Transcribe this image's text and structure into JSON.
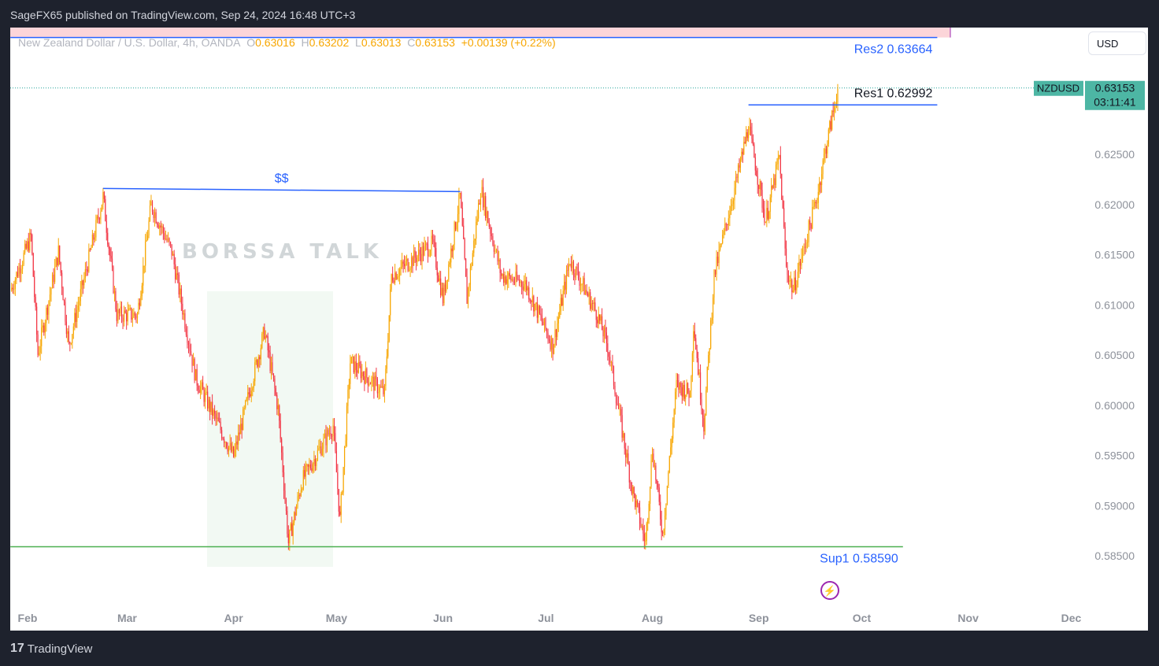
{
  "header": "SageFX65 published on TradingView.com, Sep 24, 2024 16:48 UTC+3",
  "legend": {
    "symbol": "New Zealand Dollar / U.S. Dollar, 4h, OANDA",
    "o_label": "O",
    "o": "0.63016",
    "h_label": "H",
    "h": "0.63202",
    "l_label": "L",
    "l": "0.63013",
    "c_label": "C",
    "c": "0.63153",
    "change": "+0.00139 (+0.22%)"
  },
  "currency_button": "USD",
  "price_tag": {
    "symbol": "NZDUSD",
    "price": "0.63153",
    "countdown": "03:11:41",
    "color": "#4db6a4"
  },
  "watermark": {
    "text": "BORSSA TALK"
  },
  "footer": {
    "logo": "TradingView"
  },
  "colors": {
    "up": "#f7a600",
    "down": "#f23645",
    "levels": "#2962ff",
    "support": "#4caf50",
    "zone": "#fcd5d9"
  },
  "chart_data": {
    "type": "candlestick",
    "symbol": "NZDUSD",
    "interval": "4h",
    "ylim": [
      0.5805,
      0.6383
    ],
    "y_ticks": [
      "0.62500",
      "0.62000",
      "0.61500",
      "0.61000",
      "0.60500",
      "0.60000",
      "0.59500",
      "0.59000",
      "0.58500"
    ],
    "x_ticks": [
      "Feb",
      "Mar",
      "Apr",
      "May",
      "Jun",
      "Jul",
      "Aug",
      "Sep",
      "Oct",
      "Nov",
      "Dec"
    ],
    "price_path": [
      [
        "2024-01-27",
        0.6114
      ],
      [
        "2024-02-02",
        0.6168
      ],
      [
        "2024-02-04",
        0.6051
      ],
      [
        "2024-02-10",
        0.6153
      ],
      [
        "2024-02-13",
        0.6059
      ],
      [
        "2024-02-23",
        0.6208
      ],
      [
        "2024-02-27",
        0.609
      ],
      [
        "2024-03-04",
        0.609
      ],
      [
        "2024-03-08",
        0.62
      ],
      [
        "2024-03-14",
        0.6153
      ],
      [
        "2024-03-21",
        0.6027
      ],
      [
        "2024-04-01",
        0.5949
      ],
      [
        "2024-04-10",
        0.6074
      ],
      [
        "2024-04-14",
        0.5996
      ],
      [
        "2024-04-17",
        0.5863
      ],
      [
        "2024-04-21",
        0.5925
      ],
      [
        "2024-04-30",
        0.598
      ],
      [
        "2024-05-02",
        0.5886
      ],
      [
        "2024-05-05",
        0.6043
      ],
      [
        "2024-05-15",
        0.6012
      ],
      [
        "2024-05-17",
        0.6129
      ],
      [
        "2024-05-29",
        0.6161
      ],
      [
        "2024-06-01",
        0.6106
      ],
      [
        "2024-06-06",
        0.6208
      ],
      [
        "2024-06-08",
        0.6106
      ],
      [
        "2024-06-12",
        0.6216
      ],
      [
        "2024-06-18",
        0.6129
      ],
      [
        "2024-06-25",
        0.6121
      ],
      [
        "2024-07-03",
        0.6059
      ],
      [
        "2024-07-08",
        0.6145
      ],
      [
        "2024-07-16",
        0.609
      ],
      [
        "2024-07-19",
        0.6059
      ],
      [
        "2024-07-26",
        0.5918
      ],
      [
        "2024-07-30",
        0.5863
      ],
      [
        "2024-08-01",
        0.5957
      ],
      [
        "2024-08-04",
        0.5871
      ],
      [
        "2024-08-08",
        0.602
      ],
      [
        "2024-08-12",
        0.6012
      ],
      [
        "2024-08-13",
        0.6082
      ],
      [
        "2024-08-16",
        0.598
      ],
      [
        "2024-08-19",
        0.6129
      ],
      [
        "2024-08-26",
        0.6231
      ],
      [
        "2024-08-29",
        0.6278
      ],
      [
        "2024-09-03",
        0.6184
      ],
      [
        "2024-09-07",
        0.6247
      ],
      [
        "2024-09-09",
        0.6137
      ],
      [
        "2024-09-11",
        0.6114
      ],
      [
        "2024-09-18",
        0.6208
      ],
      [
        "2024-09-20",
        0.6247
      ],
      [
        "2024-09-24",
        0.63153
      ]
    ],
    "levels": [
      {
        "label": "Res2 0.63664",
        "value": 0.63664,
        "from": "2024-01-27",
        "to": "2024-10-23"
      },
      {
        "label": "Res1 0.62992",
        "value": 0.62992,
        "from": "2024-08-29",
        "to": "2024-10-23"
      },
      {
        "label": "Sup1 0.58590",
        "value": 0.5859,
        "from": "2024-01-27",
        "to": "2024-10-13"
      },
      {
        "label": "$$",
        "value": 0.6216,
        "from": "2024-02-23",
        "to": "2024-06-06"
      }
    ]
  }
}
